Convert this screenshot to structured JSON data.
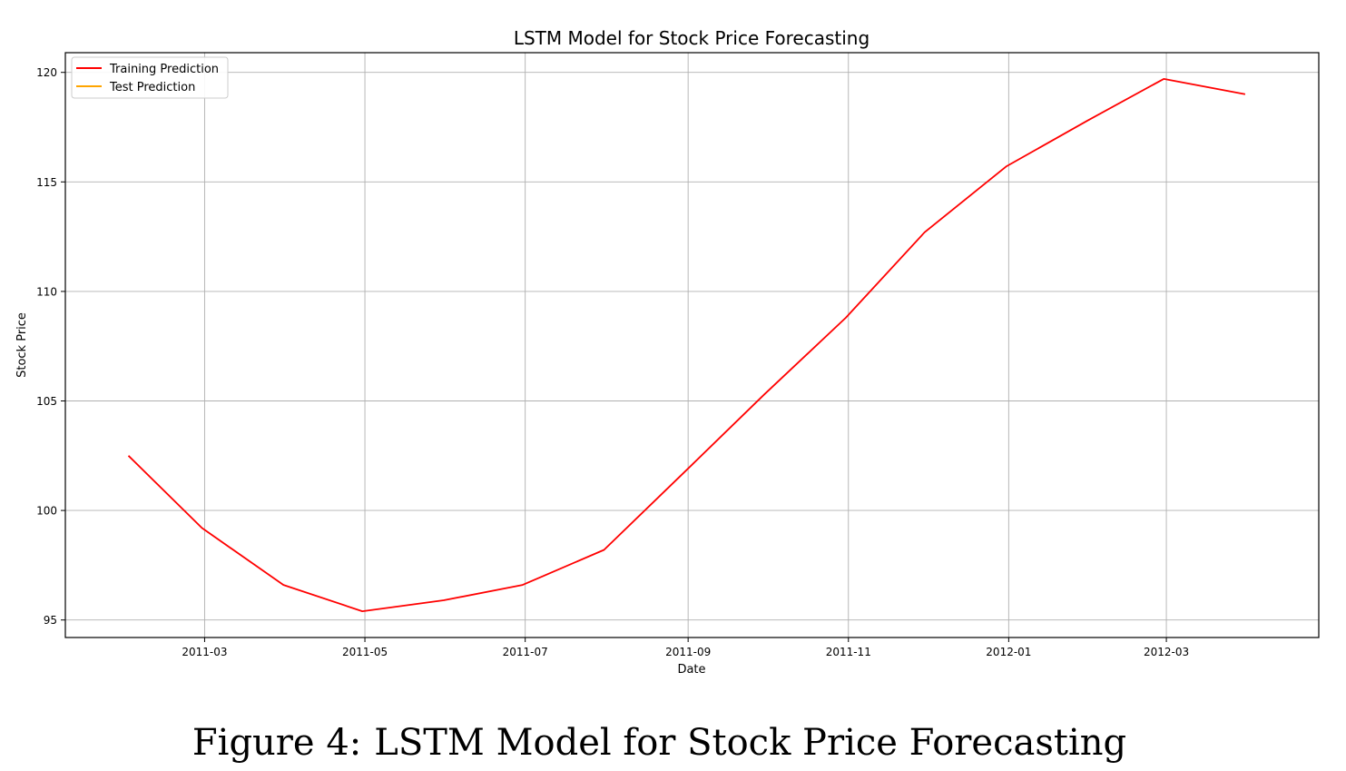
{
  "figure": {
    "caption_label": "Figure 4:",
    "caption_text": "LSTM Model for Stock Price Forecasting"
  },
  "chart_data": {
    "type": "line",
    "title": "LSTM Model for Stock Price Forecasting",
    "xlabel": "Date",
    "ylabel": "Stock Price",
    "grid": true,
    "legend_placement": "top-left",
    "xlim": [
      "2011-01-07",
      "2012-04-28"
    ],
    "ylim": [
      94.2,
      120.9
    ],
    "x_ticks": [
      "2011-03",
      "2011-05",
      "2011-07",
      "2011-09",
      "2011-11",
      "2012-01",
      "2012-03"
    ],
    "y_ticks": [
      95,
      100,
      105,
      110,
      115,
      120
    ],
    "series": [
      {
        "name": "Training Prediction",
        "color": "#ff0000",
        "x": [
          "2011-01-31",
          "2011-02-28",
          "2011-03-31",
          "2011-04-30",
          "2011-05-31",
          "2011-06-30",
          "2011-07-31",
          "2011-08-31",
          "2011-09-30",
          "2011-10-31",
          "2011-11-30",
          "2011-12-31",
          "2012-01-31",
          "2012-02-29",
          "2012-03-31"
        ],
        "values": [
          102.5,
          99.2,
          96.6,
          95.4,
          95.9,
          96.6,
          98.2,
          101.8,
          105.3,
          108.8,
          112.7,
          115.7,
          117.8,
          119.7,
          119.0
        ]
      },
      {
        "name": "Test Prediction",
        "color": "#ffa500",
        "x": [],
        "values": []
      }
    ]
  }
}
